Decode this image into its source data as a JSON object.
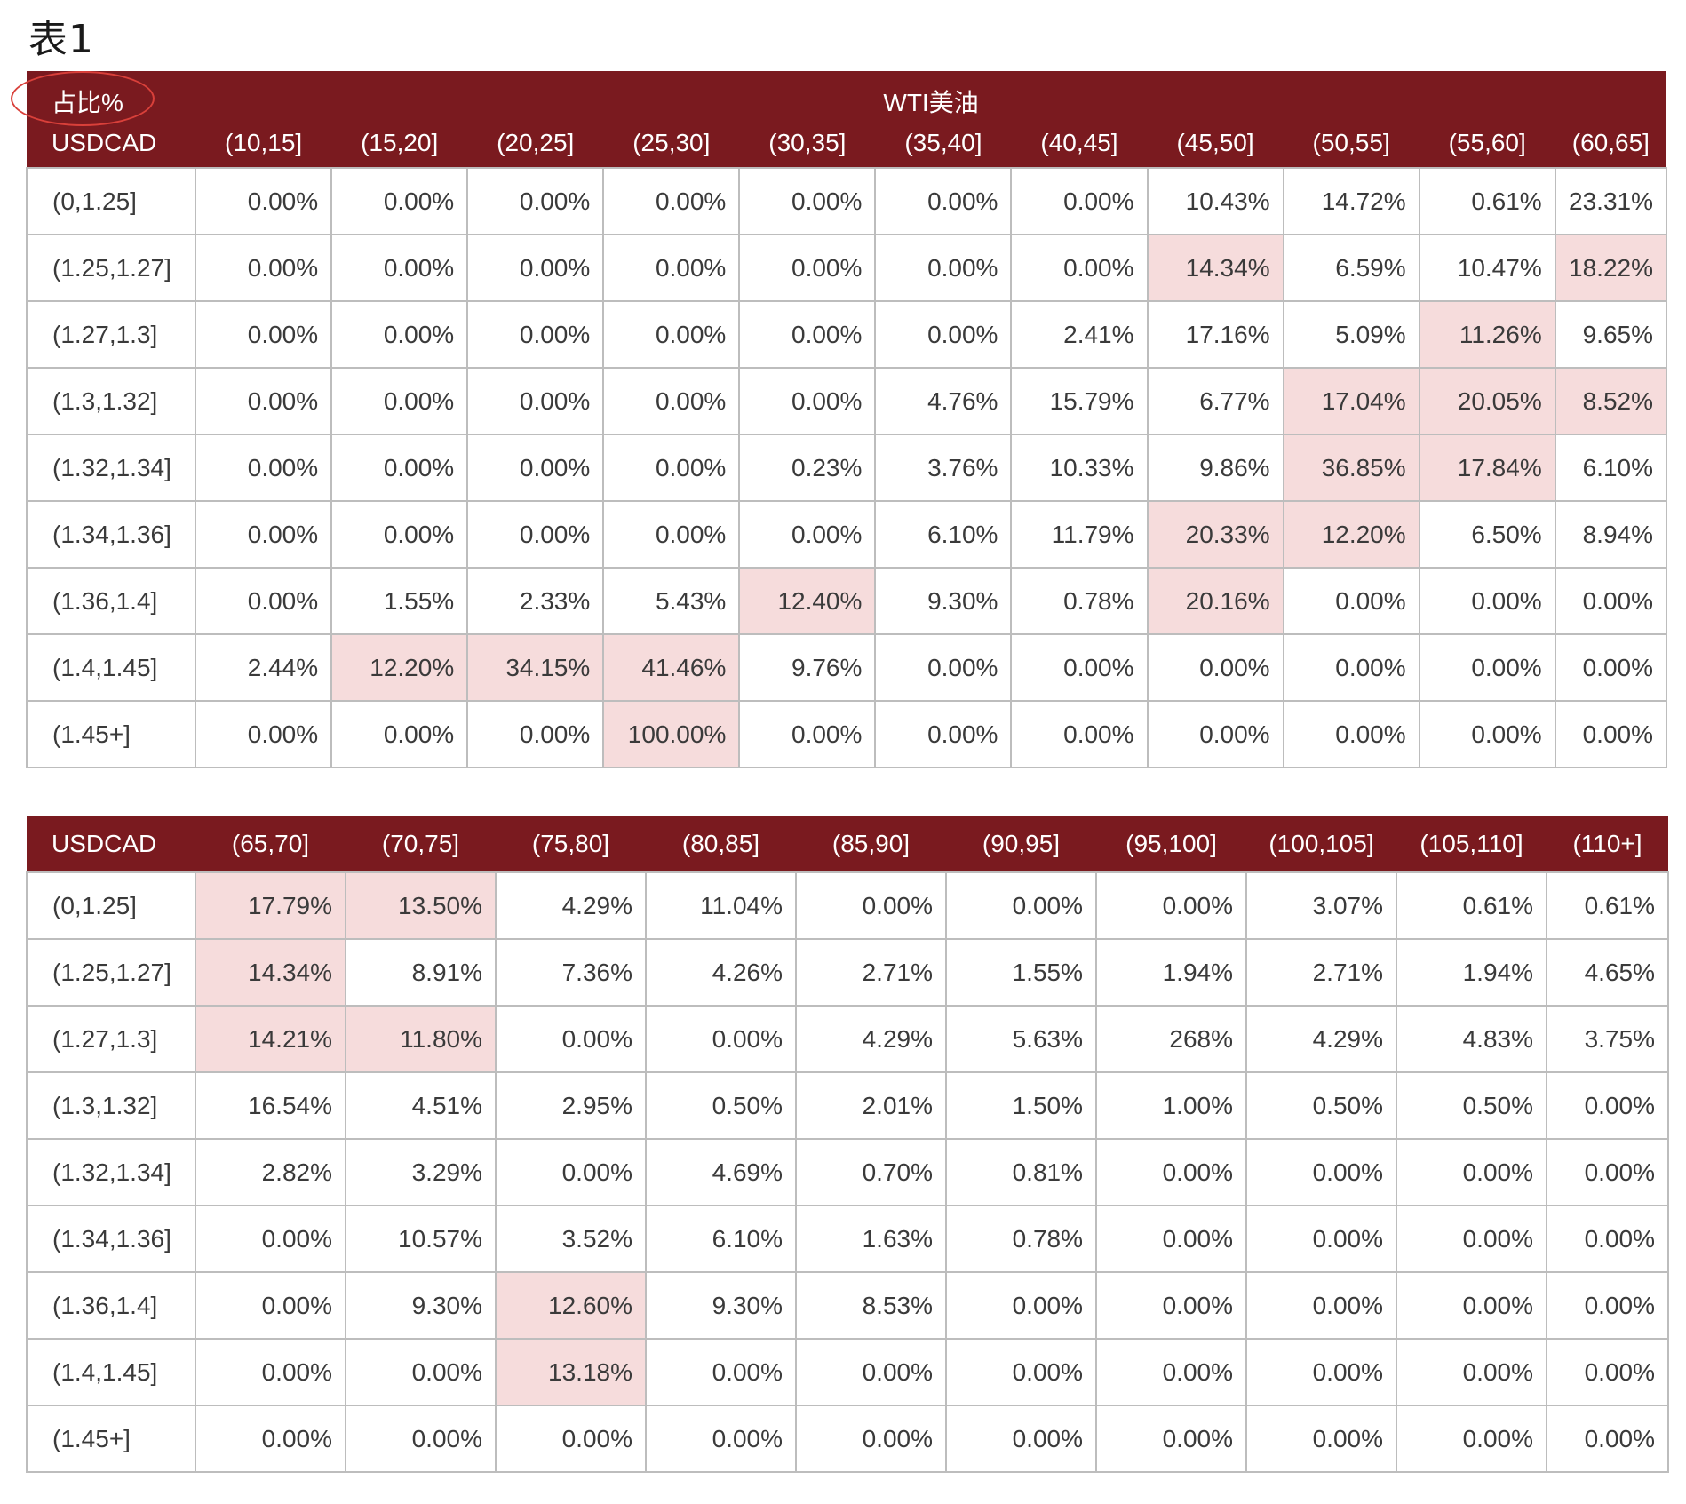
{
  "caption": "表1",
  "table1": {
    "corner_top": "占比%",
    "corner_bottom": "USDCAD",
    "group_label": "WTI美油",
    "columns": [
      "(10,15]",
      "(15,20]",
      "(20,25]",
      "(25,30]",
      "(30,35]",
      "(35,40]",
      "(40,45]",
      "(45,50]",
      "(50,55]",
      "(55,60]",
      "(60,65]"
    ],
    "rows": [
      {
        "label": "(0,1.25]",
        "cells": [
          {
            "v": "0.00%"
          },
          {
            "v": "0.00%"
          },
          {
            "v": "0.00%"
          },
          {
            "v": "0.00%"
          },
          {
            "v": "0.00%"
          },
          {
            "v": "0.00%"
          },
          {
            "v": "0.00%"
          },
          {
            "v": "10.43%"
          },
          {
            "v": "14.72%"
          },
          {
            "v": "0.61%"
          },
          {
            "v": "23.31%"
          }
        ]
      },
      {
        "label": "(1.25,1.27]",
        "cells": [
          {
            "v": "0.00%"
          },
          {
            "v": "0.00%"
          },
          {
            "v": "0.00%"
          },
          {
            "v": "0.00%"
          },
          {
            "v": "0.00%"
          },
          {
            "v": "0.00%"
          },
          {
            "v": "0.00%"
          },
          {
            "v": "14.34%",
            "hl": true
          },
          {
            "v": "6.59%"
          },
          {
            "v": "10.47%"
          },
          {
            "v": "18.22%",
            "hl": true
          }
        ]
      },
      {
        "label": "(1.27,1.3]",
        "cells": [
          {
            "v": "0.00%"
          },
          {
            "v": "0.00%"
          },
          {
            "v": "0.00%"
          },
          {
            "v": "0.00%"
          },
          {
            "v": "0.00%"
          },
          {
            "v": "0.00%"
          },
          {
            "v": "2.41%"
          },
          {
            "v": "17.16%"
          },
          {
            "v": "5.09%"
          },
          {
            "v": "11.26%",
            "hl": true
          },
          {
            "v": "9.65%"
          }
        ]
      },
      {
        "label": "(1.3,1.32]",
        "cells": [
          {
            "v": "0.00%"
          },
          {
            "v": "0.00%"
          },
          {
            "v": "0.00%"
          },
          {
            "v": "0.00%"
          },
          {
            "v": "0.00%"
          },
          {
            "v": "4.76%"
          },
          {
            "v": "15.79%"
          },
          {
            "v": "6.77%"
          },
          {
            "v": "17.04%",
            "hl": true
          },
          {
            "v": "20.05%",
            "hl": true
          },
          {
            "v": "8.52%",
            "hl": true
          }
        ]
      },
      {
        "label": "(1.32,1.34]",
        "cells": [
          {
            "v": "0.00%"
          },
          {
            "v": "0.00%"
          },
          {
            "v": "0.00%"
          },
          {
            "v": "0.00%"
          },
          {
            "v": "0.23%"
          },
          {
            "v": "3.76%"
          },
          {
            "v": "10.33%"
          },
          {
            "v": "9.86%"
          },
          {
            "v": "36.85%",
            "hl": true
          },
          {
            "v": "17.84%",
            "hl": true
          },
          {
            "v": "6.10%"
          }
        ]
      },
      {
        "label": "(1.34,1.36]",
        "cells": [
          {
            "v": "0.00%"
          },
          {
            "v": "0.00%"
          },
          {
            "v": "0.00%"
          },
          {
            "v": "0.00%"
          },
          {
            "v": "0.00%"
          },
          {
            "v": "6.10%"
          },
          {
            "v": "11.79%"
          },
          {
            "v": "20.33%",
            "hl": true
          },
          {
            "v": "12.20%",
            "hl": true
          },
          {
            "v": "6.50%"
          },
          {
            "v": "8.94%"
          }
        ]
      },
      {
        "label": "(1.36,1.4]",
        "cells": [
          {
            "v": "0.00%"
          },
          {
            "v": "1.55%"
          },
          {
            "v": "2.33%"
          },
          {
            "v": "5.43%"
          },
          {
            "v": "12.40%",
            "hl": true
          },
          {
            "v": "9.30%"
          },
          {
            "v": "0.78%"
          },
          {
            "v": "20.16%",
            "hl": true
          },
          {
            "v": "0.00%"
          },
          {
            "v": "0.00%"
          },
          {
            "v": "0.00%"
          }
        ]
      },
      {
        "label": "(1.4,1.45]",
        "cells": [
          {
            "v": "2.44%"
          },
          {
            "v": "12.20%",
            "hl": true
          },
          {
            "v": "34.15%",
            "hl": true
          },
          {
            "v": "41.46%",
            "hl": true
          },
          {
            "v": "9.76%"
          },
          {
            "v": "0.00%"
          },
          {
            "v": "0.00%"
          },
          {
            "v": "0.00%"
          },
          {
            "v": "0.00%"
          },
          {
            "v": "0.00%"
          },
          {
            "v": "0.00%"
          }
        ]
      },
      {
        "label": "(1.45+]",
        "cells": [
          {
            "v": "0.00%"
          },
          {
            "v": "0.00%"
          },
          {
            "v": "0.00%"
          },
          {
            "v": "100.00%",
            "hl": true
          },
          {
            "v": "0.00%"
          },
          {
            "v": "0.00%"
          },
          {
            "v": "0.00%"
          },
          {
            "v": "0.00%"
          },
          {
            "v": "0.00%"
          },
          {
            "v": "0.00%"
          },
          {
            "v": "0.00%"
          }
        ]
      }
    ]
  },
  "table2": {
    "corner": "USDCAD",
    "columns": [
      "(65,70]",
      "(70,75]",
      "(75,80]",
      "(80,85]",
      "(85,90]",
      "(90,95]",
      "(95,100]",
      "(100,105]",
      "(105,110]",
      "(110+]"
    ],
    "rows": [
      {
        "label": "(0,1.25]",
        "cells": [
          {
            "v": "17.79%",
            "hl": true
          },
          {
            "v": "13.50%",
            "hl": true
          },
          {
            "v": "4.29%"
          },
          {
            "v": "11.04%"
          },
          {
            "v": "0.00%"
          },
          {
            "v": "0.00%"
          },
          {
            "v": "0.00%"
          },
          {
            "v": "3.07%"
          },
          {
            "v": "0.61%"
          },
          {
            "v": "0.61%"
          }
        ]
      },
      {
        "label": "(1.25,1.27]",
        "cells": [
          {
            "v": "14.34%",
            "hl": true
          },
          {
            "v": "8.91%"
          },
          {
            "v": "7.36%"
          },
          {
            "v": "4.26%"
          },
          {
            "v": "2.71%"
          },
          {
            "v": "1.55%"
          },
          {
            "v": "1.94%"
          },
          {
            "v": "2.71%"
          },
          {
            "v": "1.94%"
          },
          {
            "v": "4.65%"
          }
        ]
      },
      {
        "label": "(1.27,1.3]",
        "cells": [
          {
            "v": "14.21%",
            "hl": true
          },
          {
            "v": "11.80%",
            "hl": true
          },
          {
            "v": "0.00%"
          },
          {
            "v": "0.00%"
          },
          {
            "v": "4.29%"
          },
          {
            "v": "5.63%"
          },
          {
            "v": "268%"
          },
          {
            "v": "4.29%"
          },
          {
            "v": "4.83%"
          },
          {
            "v": "3.75%"
          }
        ]
      },
      {
        "label": "(1.3,1.32]",
        "cells": [
          {
            "v": "16.54%"
          },
          {
            "v": "4.51%"
          },
          {
            "v": "2.95%"
          },
          {
            "v": "0.50%"
          },
          {
            "v": "2.01%"
          },
          {
            "v": "1.50%"
          },
          {
            "v": "1.00%"
          },
          {
            "v": "0.50%"
          },
          {
            "v": "0.50%"
          },
          {
            "v": "0.00%"
          }
        ]
      },
      {
        "label": "(1.32,1.34]",
        "cells": [
          {
            "v": "2.82%"
          },
          {
            "v": "3.29%"
          },
          {
            "v": "0.00%"
          },
          {
            "v": "4.69%"
          },
          {
            "v": "0.70%"
          },
          {
            "v": "0.81%"
          },
          {
            "v": "0.00%"
          },
          {
            "v": "0.00%"
          },
          {
            "v": "0.00%"
          },
          {
            "v": "0.00%"
          }
        ]
      },
      {
        "label": "(1.34,1.36]",
        "cells": [
          {
            "v": "0.00%"
          },
          {
            "v": "10.57%"
          },
          {
            "v": "3.52%"
          },
          {
            "v": "6.10%"
          },
          {
            "v": "1.63%"
          },
          {
            "v": "0.78%"
          },
          {
            "v": "0.00%"
          },
          {
            "v": "0.00%"
          },
          {
            "v": "0.00%"
          },
          {
            "v": "0.00%"
          }
        ]
      },
      {
        "label": "(1.36,1.4]",
        "cells": [
          {
            "v": "0.00%"
          },
          {
            "v": "9.30%"
          },
          {
            "v": "12.60%",
            "hl": true
          },
          {
            "v": "9.30%"
          },
          {
            "v": "8.53%"
          },
          {
            "v": "0.00%"
          },
          {
            "v": "0.00%"
          },
          {
            "v": "0.00%"
          },
          {
            "v": "0.00%"
          },
          {
            "v": "0.00%"
          }
        ]
      },
      {
        "label": "(1.4,1.45]",
        "cells": [
          {
            "v": "0.00%"
          },
          {
            "v": "0.00%"
          },
          {
            "v": "13.18%",
            "hl": true
          },
          {
            "v": "0.00%"
          },
          {
            "v": "0.00%"
          },
          {
            "v": "0.00%"
          },
          {
            "v": "0.00%"
          },
          {
            "v": "0.00%"
          },
          {
            "v": "0.00%"
          },
          {
            "v": "0.00%"
          }
        ]
      },
      {
        "label": "(1.45+]",
        "cells": [
          {
            "v": "0.00%"
          },
          {
            "v": "0.00%"
          },
          {
            "v": "0.00%"
          },
          {
            "v": "0.00%"
          },
          {
            "v": "0.00%"
          },
          {
            "v": "0.00%"
          },
          {
            "v": "0.00%"
          },
          {
            "v": "0.00%"
          },
          {
            "v": "0.00%"
          },
          {
            "v": "0.00%"
          }
        ]
      }
    ]
  },
  "colors": {
    "header_bg": "#7a1a1f",
    "highlight_bg": "#f6dcdc",
    "annotation_ring": "#d9403a"
  }
}
